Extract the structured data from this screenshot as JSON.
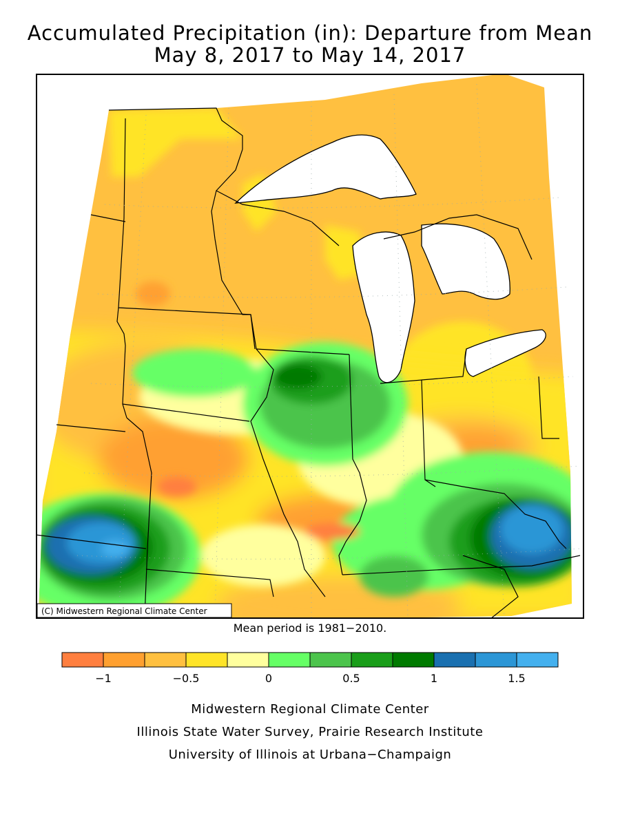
{
  "title": {
    "line1": "Accumulated Precipitation (in): Departure from Mean",
    "line2": "May 8, 2017 to May 14, 2017"
  },
  "map": {
    "copyright": "(C) Midwestern Regional Climate Center",
    "water_color": "#ffffff",
    "border_color": "#000000"
  },
  "mean_period_note": "Mean period is 1981−2010.",
  "legend": {
    "bins": [
      {
        "range": "< -1",
        "color": "#ff7f3f"
      },
      {
        "range": "-1 to -0.75",
        "color": "#ffa030"
      },
      {
        "range": "-0.75 to -0.5",
        "color": "#ffc040"
      },
      {
        "range": "-0.5 to -0.25",
        "color": "#ffe428"
      },
      {
        "range": "-0.25 to 0",
        "color": "#ffff9e"
      },
      {
        "range": "0 to 0.25",
        "color": "#66ff66"
      },
      {
        "range": "0.25 to 0.5",
        "color": "#4cc44c"
      },
      {
        "range": "0.5 to 0.75",
        "color": "#1a9e1a"
      },
      {
        "range": "0.75 to 1",
        "color": "#007a00"
      },
      {
        "range": "1 to 1.25",
        "color": "#1a70b0"
      },
      {
        "range": "1.25 to 1.5",
        "color": "#2c96d6"
      },
      {
        "range": "> 1.5",
        "color": "#44b0ee"
      }
    ],
    "tick_labels": [
      "−1",
      "−0.5",
      "0",
      "0.5",
      "1",
      "1.5"
    ]
  },
  "credits": {
    "line1": "Midwestern Regional Climate Center",
    "line2": "Illinois State Water Survey, Prairie Research Institute",
    "line3": "University of Illinois at Urbana−Champaign"
  }
}
